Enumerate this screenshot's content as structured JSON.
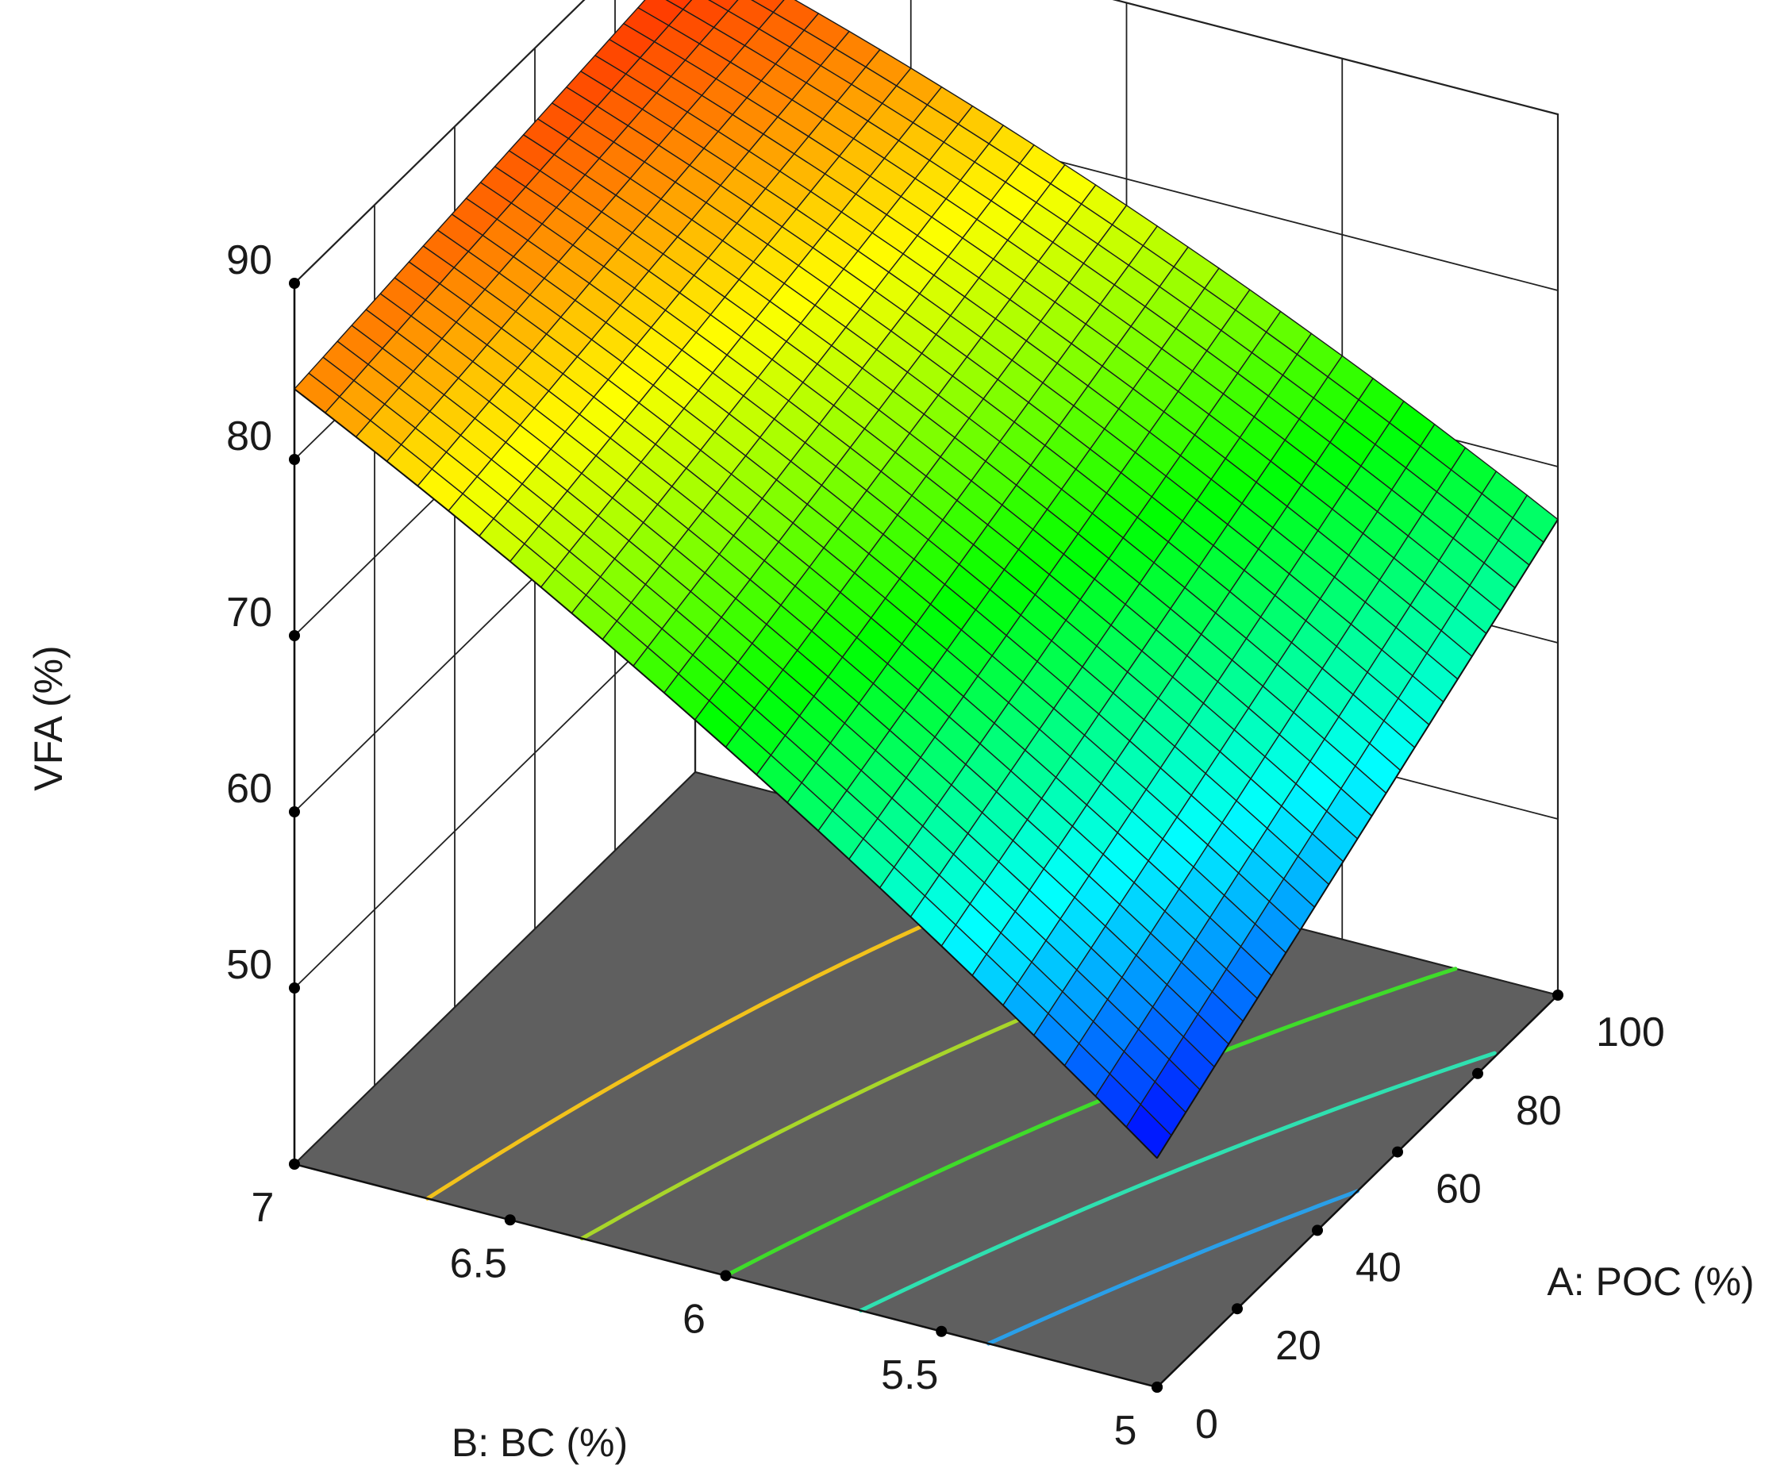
{
  "chart_data": {
    "type": "surface3d",
    "title": "",
    "axes": {
      "x": {
        "label": "A: POC (%)",
        "min": 0,
        "max": 100,
        "ticks": [
          0,
          20,
          40,
          60,
          80,
          100
        ],
        "tick_labels": [
          "0",
          "20",
          "40",
          "60",
          "80",
          "100"
        ]
      },
      "y": {
        "label": "B: BC (%)",
        "min": 5,
        "max": 7,
        "ticks": [
          5,
          5.5,
          6,
          6.5,
          7
        ],
        "tick_labels": [
          "5",
          "5.5",
          "6",
          "6.5",
          "7"
        ]
      },
      "z": {
        "label": "VFA (%)",
        "min": 40,
        "max": 90,
        "ticks": [
          50,
          60,
          70,
          80,
          90
        ],
        "tick_labels": [
          "50",
          "60",
          "70",
          "80",
          "90"
        ]
      }
    },
    "surface_corners": [
      {
        "A": 0,
        "B": 7,
        "VFA": 84
      },
      {
        "A": 100,
        "B": 7,
        "VFA": 87
      },
      {
        "A": 0,
        "B": 5,
        "VFA": 53
      },
      {
        "A": 100,
        "B": 5,
        "VFA": 67
      }
    ],
    "contour_colors": [
      "#f2c21b",
      "#a8d62a",
      "#3fdc2a",
      "#2fe0b0",
      "#2a9fe8"
    ],
    "floor_color": "#5f5f5f",
    "colormap": [
      "#0000ff",
      "#00ffff",
      "#00ff00",
      "#ffff00",
      "#ff0000"
    ],
    "grid": true
  }
}
